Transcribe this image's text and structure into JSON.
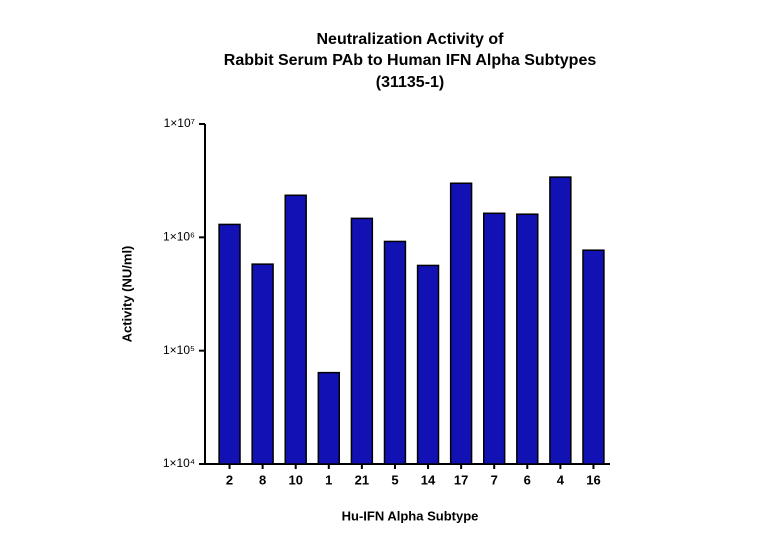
{
  "chart_data": {
    "type": "bar",
    "title": [
      "Neutralization Activity of",
      "Rabbit Serum PAb to Human IFN Alpha Subtypes",
      "(31135-1)"
    ],
    "xlabel": "Hu-IFN Alpha Subtype",
    "ylabel": "Activity (NU/ml)",
    "categories": [
      "2",
      "8",
      "10",
      "1",
      "21",
      "5",
      "14",
      "17",
      "7",
      "6",
      "4",
      "16"
    ],
    "values": [
      1300000,
      580000,
      2350000,
      64000,
      1470000,
      920000,
      565000,
      3000000,
      1630000,
      1600000,
      3400000,
      770000
    ],
    "color": "#1212b4",
    "log_y": true,
    "ylim": [
      10000,
      10000000
    ],
    "yticks": [
      {
        "value": 10000,
        "label": "1×10⁴"
      },
      {
        "value": 100000,
        "label": "1×10⁵"
      },
      {
        "value": 1000000,
        "label": "1×10⁶"
      },
      {
        "value": 10000000,
        "label": "1×10⁷"
      }
    ],
    "grid": false
  }
}
